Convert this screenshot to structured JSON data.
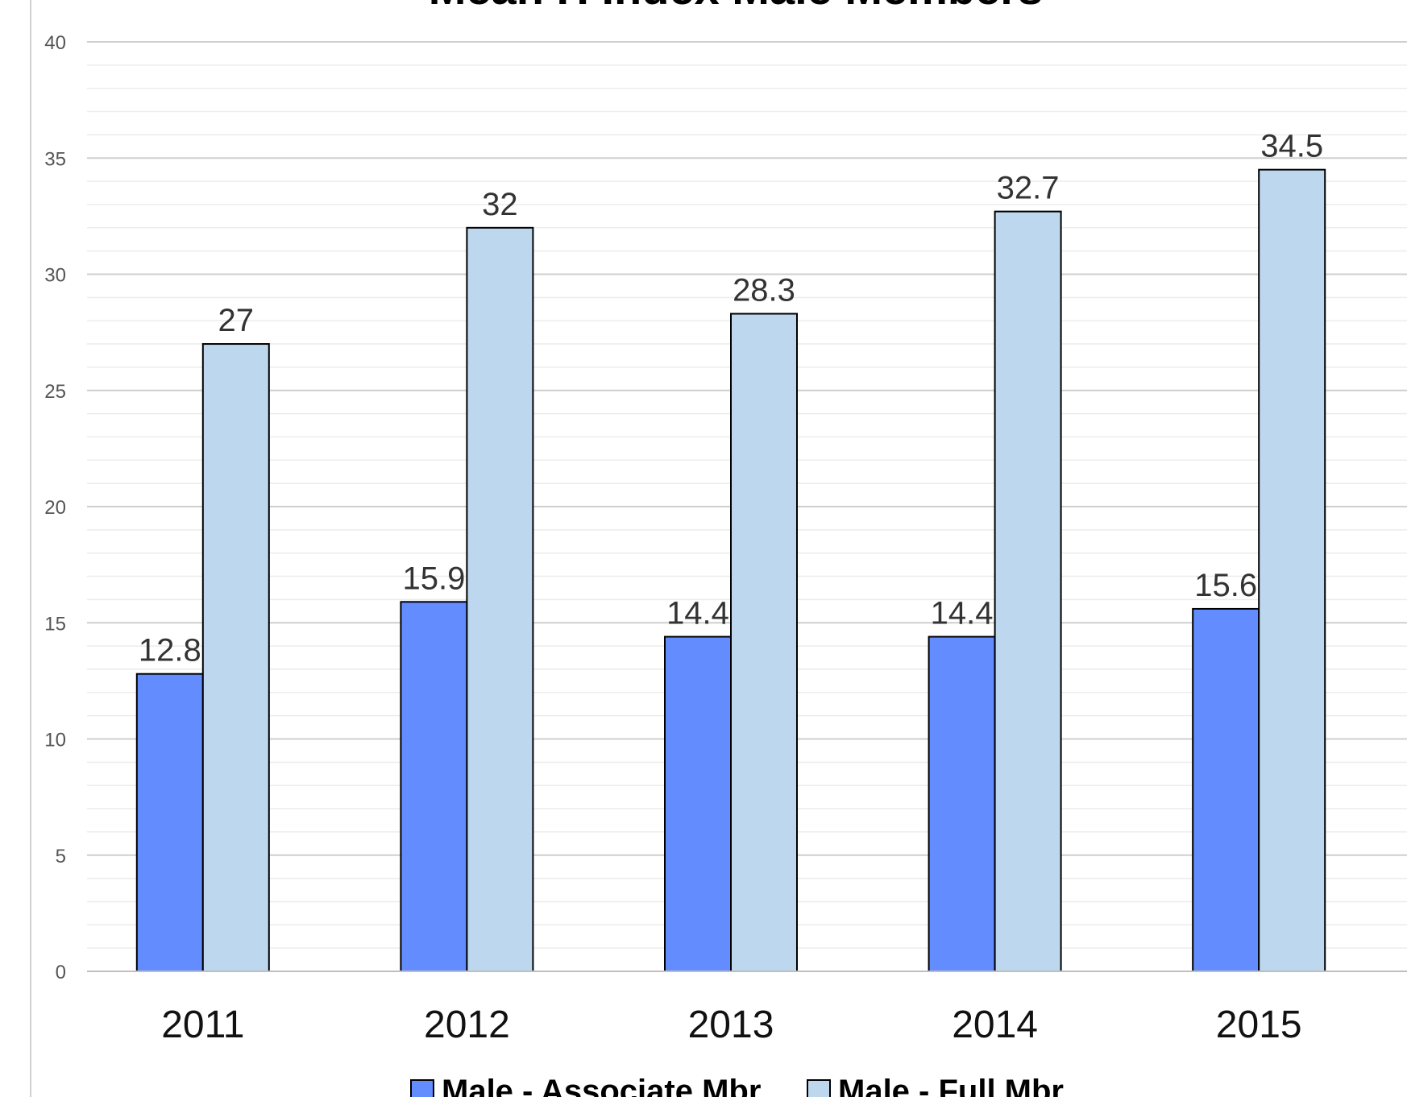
{
  "chart_data": {
    "type": "bar",
    "title": "Mean H Index Male Members",
    "categories": [
      "2011",
      "2012",
      "2013",
      "2014",
      "2015"
    ],
    "series": [
      {
        "name": "Male - Associate Mbr",
        "color": "#638cff",
        "values": [
          12.8,
          15.9,
          14.4,
          14.4,
          15.6
        ],
        "labels": [
          "12.8",
          "15.9",
          "14.4",
          "14.4",
          "15.6"
        ]
      },
      {
        "name": "Male - Full Mbr",
        "color": "#bdd7ee",
        "values": [
          27,
          32,
          28.3,
          32.7,
          34.5
        ],
        "labels": [
          "27",
          "32",
          "28.3",
          "32.7",
          "34.5"
        ]
      }
    ],
    "ylim": [
      0,
      40
    ],
    "yticks": [
      "0",
      "5",
      "10",
      "15",
      "20",
      "25",
      "30",
      "35",
      "40"
    ],
    "grid": true,
    "legend_position": "bottom"
  }
}
